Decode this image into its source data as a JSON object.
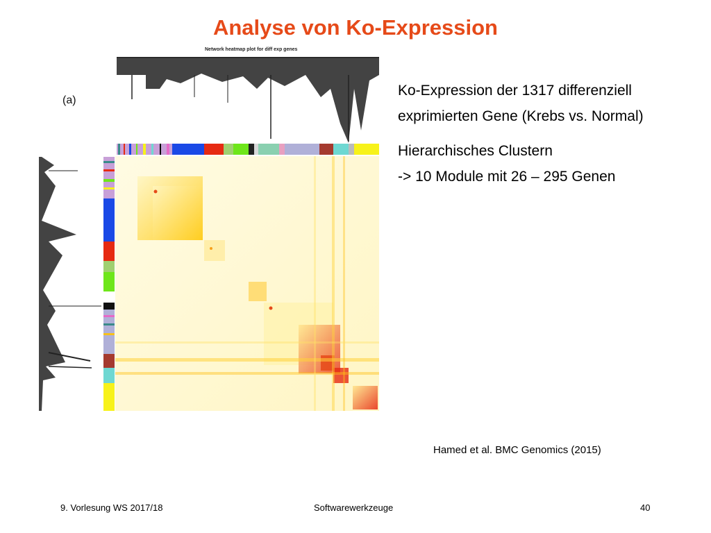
{
  "slide": {
    "title": "Analyse von Ko-Expression",
    "bullets": [
      "Ko-Expression der 1317 differenziell",
      "exprimierten Gene (Krebs vs. Normal)",
      "Hierarchisches Clustern",
      "-> 10 Module mit 26 – 295 Genen"
    ],
    "citation": "Hamed et al. BMC Genomics (2015)"
  },
  "figure": {
    "panel_label": "(a)",
    "caption": "Network heatmap plot for diff exp genes",
    "module_colors": [
      "#1a49e6",
      "#e62a12",
      "#6ee61a",
      "#000000",
      "#a53a2f",
      "#6fd8d2",
      "#f7f21a"
    ],
    "heatmap_colors": {
      "low": "#fffbd9",
      "mid": "#ffd23a",
      "high": "#e62a12"
    }
  },
  "footer": {
    "left": "9. Vorlesung WS 2017/18",
    "center": "Softwarewerkzeuge",
    "right": "40"
  }
}
